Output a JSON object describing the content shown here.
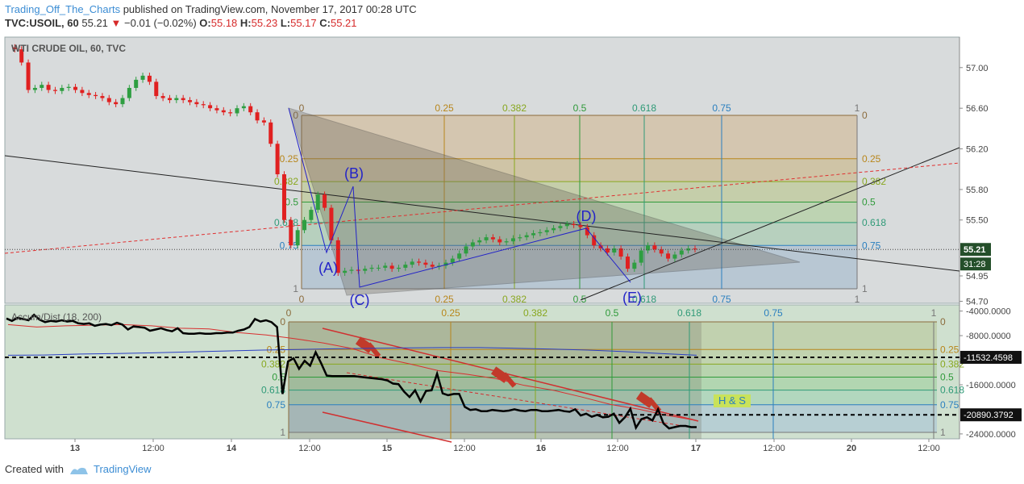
{
  "header": {
    "author": "Trading_Off_The_Charts",
    "published": "published on TradingView.com, November 17, 2017 00:28 UTC",
    "symbol": "TVC:USOIL, 60",
    "last": "55.21",
    "change": "−0.01 (−0.02%)",
    "open_label": "O:",
    "open": "55.18",
    "high_label": "H:",
    "high": "55.23",
    "low_label": "L:",
    "low": "55.17",
    "close_label": "C:",
    "close": "55.21"
  },
  "footer": {
    "created": "Created with",
    "brand": "TradingView"
  },
  "colors": {
    "up": "#2e9e41",
    "down": "#e02020",
    "fib_blue": "#2a7fbf",
    "accum": "#000000",
    "pattern": "#2323c8"
  },
  "chart_data": [
    {
      "type": "candlestick",
      "title": "WTI CRUDE OIL, 60, TVC",
      "y_ticks": [
        "57.00",
        "56.60",
        "56.20",
        "55.80",
        "55.50",
        "54.95",
        "54.70"
      ],
      "y_tick_values": [
        57.0,
        56.6,
        56.2,
        55.8,
        55.5,
        54.95,
        54.7
      ],
      "ylim": [
        54.68,
        57.3
      ],
      "x_ticks": [
        "13",
        "12:00",
        "14",
        "12:00",
        "15",
        "12:00",
        "16",
        "12:00",
        "17",
        "12:00",
        "20",
        "12:00"
      ],
      "price_label": "55.21",
      "countdown_label": "31:28",
      "close_series": [
        57.2,
        57.18,
        57.05,
        56.78,
        56.8,
        56.83,
        56.78,
        56.77,
        56.8,
        56.81,
        56.78,
        56.75,
        56.73,
        56.72,
        56.7,
        56.66,
        56.64,
        56.7,
        56.8,
        56.88,
        56.92,
        56.86,
        56.72,
        56.7,
        56.68,
        56.7,
        56.68,
        56.66,
        56.64,
        56.63,
        56.6,
        56.58,
        56.56,
        56.55,
        56.6,
        56.62,
        56.56,
        56.48,
        56.46,
        56.25,
        55.95,
        55.5,
        55.25,
        55.4,
        55.5,
        55.6,
        55.75,
        55.62,
        55.3,
        54.98,
        55.0,
        55.01,
        55.0,
        55.02,
        55.03,
        55.03,
        55.05,
        55.02,
        55.03,
        55.06,
        55.09,
        55.08,
        55.06,
        55.04,
        55.05,
        55.08,
        55.12,
        55.17,
        55.24,
        55.28,
        55.3,
        55.33,
        55.31,
        55.28,
        55.29,
        55.32,
        55.33,
        55.35,
        55.37,
        55.38,
        55.4,
        55.42,
        55.44,
        55.46,
        55.45,
        55.43,
        55.35,
        55.25,
        55.22,
        55.18,
        55.22,
        55.14,
        55.02,
        55.08,
        55.2,
        55.25,
        55.21,
        55.17,
        55.12,
        55.16,
        55.2,
        55.22,
        55.21
      ],
      "fib_retracement_levels": [
        "0",
        "0.25",
        "0.382",
        "0.5",
        "0.618",
        "0.75",
        "1"
      ],
      "fib_time_labels": [
        "0",
        "0.25",
        "0.382",
        "0.5",
        "0.618",
        "0.75",
        "1"
      ],
      "pattern_labels": [
        "(A)",
        "(B)",
        "(C)",
        "(D)",
        "(E)"
      ]
    },
    {
      "type": "line",
      "title": "Accum/Dist (18, 200)",
      "y_ticks": [
        "-4000.0000",
        "-8000.0000",
        "-16000.0000",
        "-24000.0000"
      ],
      "y_tick_values": [
        -4000,
        -8000,
        -16000,
        -24000
      ],
      "ylim": [
        -24800,
        -3000
      ],
      "markers": [
        "-11532.4598",
        "-20890.3792"
      ],
      "marker_values": [
        -11532.4598,
        -20890.3792
      ],
      "annotation": "H & S",
      "fib_retracement_levels": [
        "0",
        "0.25",
        "0.382",
        "0.5",
        "0.618",
        "0.75",
        "1"
      ],
      "fib_time_labels": [
        "0",
        "0.25",
        "0.382",
        "0.5",
        "0.618",
        "0.75",
        "1"
      ],
      "series": [
        {
          "values": [
            -5200,
            -5600,
            -5100,
            -5300,
            -5500,
            -4600,
            -5400,
            -5800,
            -5600,
            -5700,
            -5500,
            -5700,
            -5600,
            -6000,
            -6100,
            -6000,
            -6400,
            -6200,
            -6100,
            -6300,
            -5900,
            -6200,
            -7000,
            -6500,
            -6600,
            -6700,
            -7200,
            -7000,
            -6800,
            -7100,
            -7300,
            -6800,
            -7600,
            -7700,
            -7700,
            -7600,
            -7700,
            -7700,
            -7600,
            -7600,
            -7500,
            -7500,
            -7200,
            -7000,
            -6600,
            -5300,
            -5700,
            -5500,
            -5800,
            -6600,
            -17500,
            -12200,
            -11700,
            -13400,
            -12100,
            -12900,
            -10700,
            -12500,
            -14500,
            -14600,
            -14600,
            -14600,
            -14600,
            -14600,
            -14700,
            -14800,
            -14900,
            -15000,
            -15100,
            -15300,
            -15800,
            -15900,
            -17100,
            -18000,
            -16900,
            -18700,
            -17000,
            -16900,
            -14200,
            -17400,
            -17700,
            -17500,
            -17500,
            -19600,
            -20100,
            -20000,
            -20300,
            -20300,
            -20100,
            -20200,
            -20300,
            -20200,
            -20000,
            -20200,
            -20300,
            -20100,
            -20100,
            -20300,
            -20300,
            -20200,
            -20100,
            -20300,
            -20400,
            -20000,
            -21000,
            -20700,
            -21200,
            -20900,
            -21300,
            -21200,
            -20700,
            -22200,
            -21300,
            -19900,
            -23000,
            -21600,
            -21300,
            -21800,
            -20000,
            -22300,
            -23100,
            -22900,
            -22700,
            -22700,
            -22900,
            -22900
          ]
        },
        {
          "values": [
            -6200,
            -6600,
            -6400,
            -6300,
            -6200,
            -6400,
            -6800,
            -6900,
            -7500,
            -7900,
            -8500,
            -9200,
            -10100,
            -11600,
            -12600,
            -13700,
            -14300,
            -15000,
            -16100,
            -16900,
            -18000,
            -19200,
            -20000,
            -21000,
            -21800
          ]
        },
        {
          "values": [
            -11200,
            -11150,
            -11000,
            -10900,
            -10800,
            -10650,
            -10500,
            -10350,
            -10250,
            -10150,
            -10050,
            -10000,
            -9950,
            -9950,
            -10050,
            -10200,
            -10350,
            -10600,
            -10900,
            -11200
          ]
        }
      ]
    }
  ]
}
